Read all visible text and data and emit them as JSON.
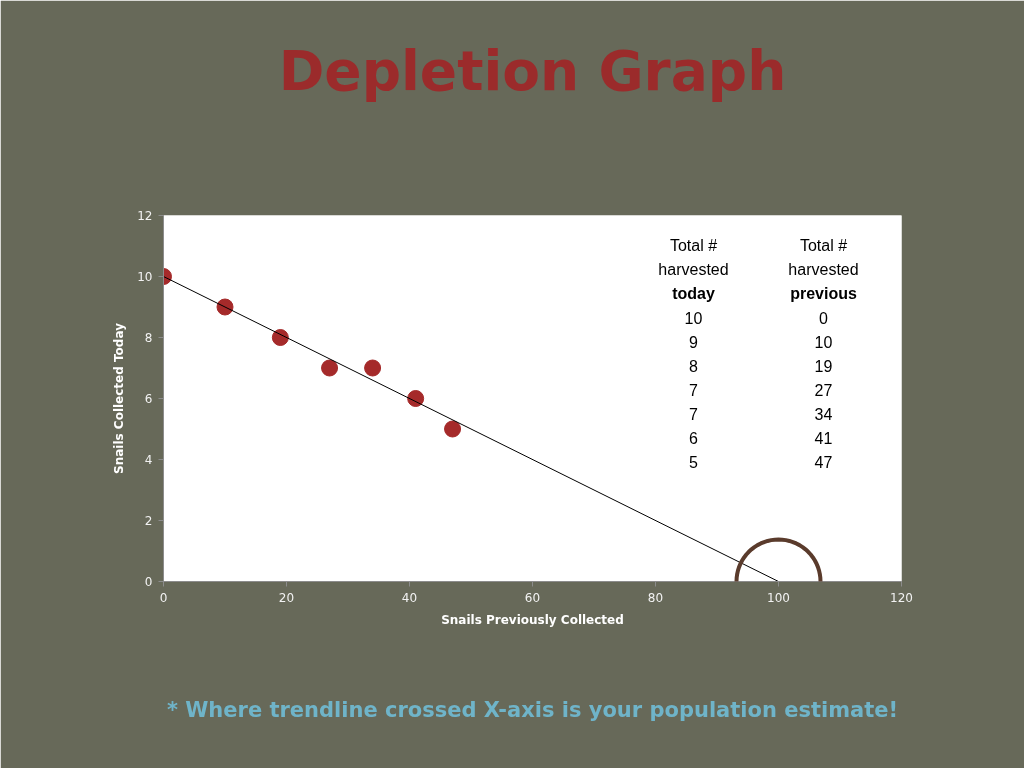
{
  "chart_data": {
    "type": "scatter",
    "title": "Depletion Graph",
    "xlabel": "Snails Previously Collected",
    "ylabel": "Snails Collected Today",
    "x": [
      0,
      10,
      19,
      27,
      34,
      41,
      47
    ],
    "series": [
      {
        "color": "#a52a2a",
        "values": [
          10,
          9,
          8,
          7,
          7,
          6,
          5
        ]
      },
      {
        "type": "line",
        "color": "#000000",
        "x": [
          0,
          100
        ],
        "values": [
          10,
          0
        ],
        "marker": "none"
      }
    ],
    "xlim": [
      0,
      120
    ],
    "xticks": [
      0,
      20,
      40,
      60,
      80,
      100,
      120
    ],
    "ylim": [
      0,
      12
    ],
    "yticks": [
      0,
      2,
      4,
      6,
      8,
      10,
      12
    ],
    "grid": false,
    "marker": "circle",
    "annotations": [
      "Total #\nharvested\ntoday",
      "Total #\nharvested\nprevious",
      "10",
      "0",
      "9",
      "10",
      "8",
      "19",
      "7",
      "27",
      "7",
      "34",
      "6",
      "41",
      "5",
      "47",
      "* Where trendline crossed X-axis is your population estimate!"
    ]
  }
}
